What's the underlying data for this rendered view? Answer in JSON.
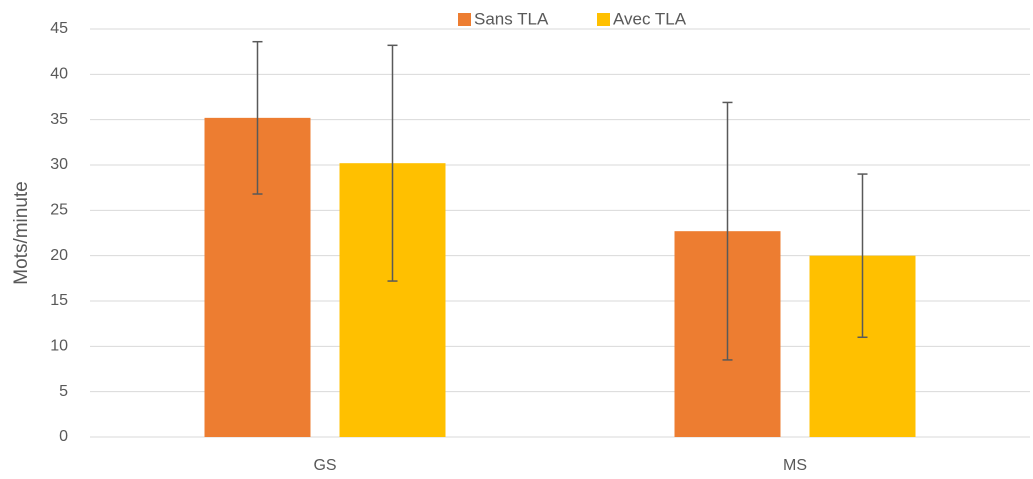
{
  "chart_data": {
    "type": "bar",
    "y_label": "Mots/minute",
    "categories": [
      "GS",
      "MS"
    ],
    "series": [
      {
        "name": "Sans TLA",
        "color": "#ed7d31",
        "values": [
          35.2,
          22.7
        ],
        "errors": [
          8.4,
          14.2
        ]
      },
      {
        "name": "Avec TLA",
        "color": "#ffc000",
        "values": [
          30.2,
          20
        ],
        "errors": [
          13,
          9
        ]
      }
    ],
    "ylim": [
      0,
      45
    ],
    "yticks": [
      0,
      5,
      10,
      15,
      20,
      25,
      30,
      35,
      40,
      45
    ],
    "grid": true,
    "legend": "top"
  }
}
